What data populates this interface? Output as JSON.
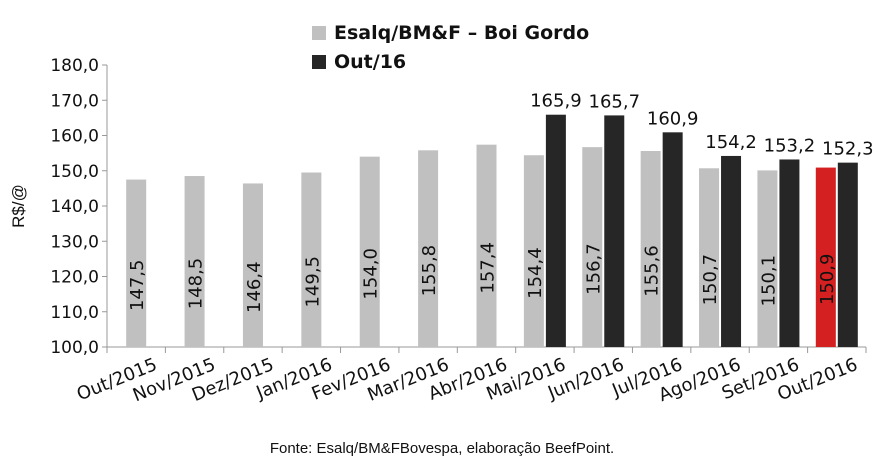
{
  "chart_data": {
    "type": "bar",
    "ylabel": "R$/@",
    "ylim": [
      100,
      180
    ],
    "yticks": [
      "100,0",
      "110,0",
      "120,0",
      "130,0",
      "140,0",
      "150,0",
      "160,0",
      "170,0",
      "180,0"
    ],
    "categories": [
      "Out/2015",
      "Nov/2015",
      "Dez/2015",
      "Jan/2016",
      "Fev/2016",
      "Mar/2016",
      "Abr/2016",
      "Mai/2016",
      "Jun/2016",
      "Jul/2016",
      "Ago/2016",
      "Set/2016",
      "Out/2016"
    ],
    "series": [
      {
        "name": "Esalq/BM&F – Boi Gordo",
        "color": "#c0c0c0",
        "values": [
          147.5,
          148.5,
          146.4,
          149.5,
          154.0,
          155.8,
          157.4,
          154.4,
          156.7,
          155.6,
          150.7,
          150.1,
          150.9
        ],
        "labels": [
          "147,5",
          "148,5",
          "146,4",
          "149,5",
          "154,0",
          "155,8",
          "157,4",
          "154,4",
          "156,7",
          "155,6",
          "150,7",
          "150,1",
          "150,9"
        ]
      },
      {
        "name": "Out/16",
        "color": "#262626",
        "values": [
          null,
          null,
          null,
          null,
          null,
          null,
          null,
          165.9,
          165.7,
          160.9,
          154.2,
          153.2,
          152.3
        ],
        "labels": [
          "",
          "",
          "",
          "",
          "",
          "",
          "",
          "165,9",
          "165,7",
          "160,9",
          "154,2",
          "153,2",
          "152,3"
        ]
      }
    ],
    "highlight": {
      "index": 12,
      "series": 0,
      "color": "#d42020"
    },
    "grid": false,
    "legend_position": "top-center"
  },
  "source": "Fonte: Esalq/BM&FBovespa, elaboração BeefPoint."
}
